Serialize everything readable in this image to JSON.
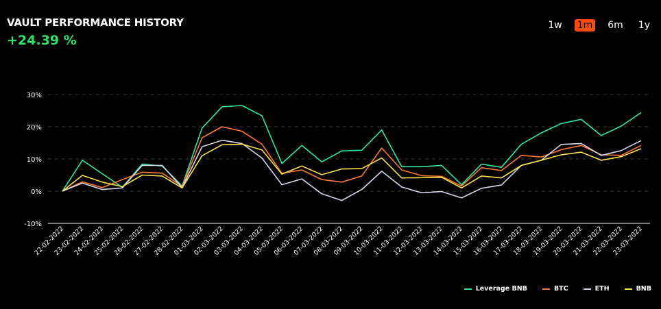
{
  "header": {
    "title": "VAULT PERFORMANCE HISTORY",
    "change": "+24.39 %"
  },
  "ranges": [
    {
      "label": "1w",
      "active": false
    },
    {
      "label": "1m",
      "active": true
    },
    {
      "label": "6m",
      "active": false
    },
    {
      "label": "1y",
      "active": false
    }
  ],
  "chart_data": {
    "type": "line",
    "x": [
      "22-02-2022",
      "23-02-2022",
      "24-02-2022",
      "25-02-2022",
      "26-02-2022",
      "27-02-2022",
      "28-02-2022",
      "01-03-2022",
      "02-03-2022",
      "03-03-2022",
      "04-03-2022",
      "05-03-2022",
      "06-03-2022",
      "07-03-2022",
      "08-03-2022",
      "09-03-2022",
      "10-03-2022",
      "11-03-2022",
      "12-03-2022",
      "13-03-2022",
      "14-03-2022",
      "15-03-2022",
      "16-03-2022",
      "17-03-2022",
      "18-03-2022",
      "19-03-2022",
      "20-03-2022",
      "21-03-2022",
      "22-03-2022",
      "23-03-2022"
    ],
    "yticks": [
      -10,
      0,
      10,
      20,
      30
    ],
    "ytick_labels": [
      "-10%",
      "0%",
      "10%",
      "20%",
      "30%"
    ],
    "ylim": [
      -10,
      30
    ],
    "grid": true,
    "legend": "bottom-right",
    "series": [
      {
        "name": "Leverage BNB",
        "color": "#2ee8a5",
        "values": [
          0,
          9.6,
          5.4,
          1.2,
          8.4,
          7.8,
          1.6,
          19.6,
          26.2,
          26.6,
          23.4,
          8.6,
          14.2,
          9.1,
          12.5,
          12.7,
          19,
          7.6,
          7.6,
          8,
          2,
          8.4,
          7.4,
          14.6,
          18.1,
          21,
          22.3,
          17.3,
          20.2,
          24.4
        ]
      },
      {
        "name": "BTC",
        "color": "#ff7a2e",
        "values": [
          0,
          2.9,
          1.1,
          3.6,
          5.9,
          5.6,
          1.5,
          16.6,
          20,
          18.6,
          14.6,
          5.5,
          6.6,
          3.6,
          2.8,
          4.7,
          13.4,
          6.6,
          4.8,
          4.6,
          1.6,
          7.3,
          6.4,
          11.1,
          10.6,
          12.9,
          14.2,
          11.3,
          11.1,
          14.2
        ]
      },
      {
        "name": "ETH",
        "color": "#d6d8ee",
        "values": [
          0,
          2.5,
          0.5,
          1,
          8,
          8,
          1.1,
          13.8,
          15.8,
          14.8,
          10.3,
          2,
          3.8,
          -0.8,
          -2.9,
          0.5,
          6.2,
          1.3,
          -0.5,
          -0.1,
          -2.1,
          0.9,
          1.9,
          8,
          9.6,
          14.5,
          14.8,
          11.1,
          12.6,
          15.7
        ]
      },
      {
        "name": "BNB",
        "color": "#ffe14a",
        "values": [
          0,
          4.9,
          2.8,
          1.4,
          5,
          4.7,
          1,
          11,
          14.4,
          14.6,
          12.8,
          5.3,
          7.8,
          5.1,
          6.9,
          7,
          10.3,
          4.1,
          4.2,
          4.3,
          1,
          4.7,
          4.1,
          8,
          9.6,
          11.3,
          12.1,
          9.6,
          10.7,
          13.2
        ]
      }
    ]
  }
}
